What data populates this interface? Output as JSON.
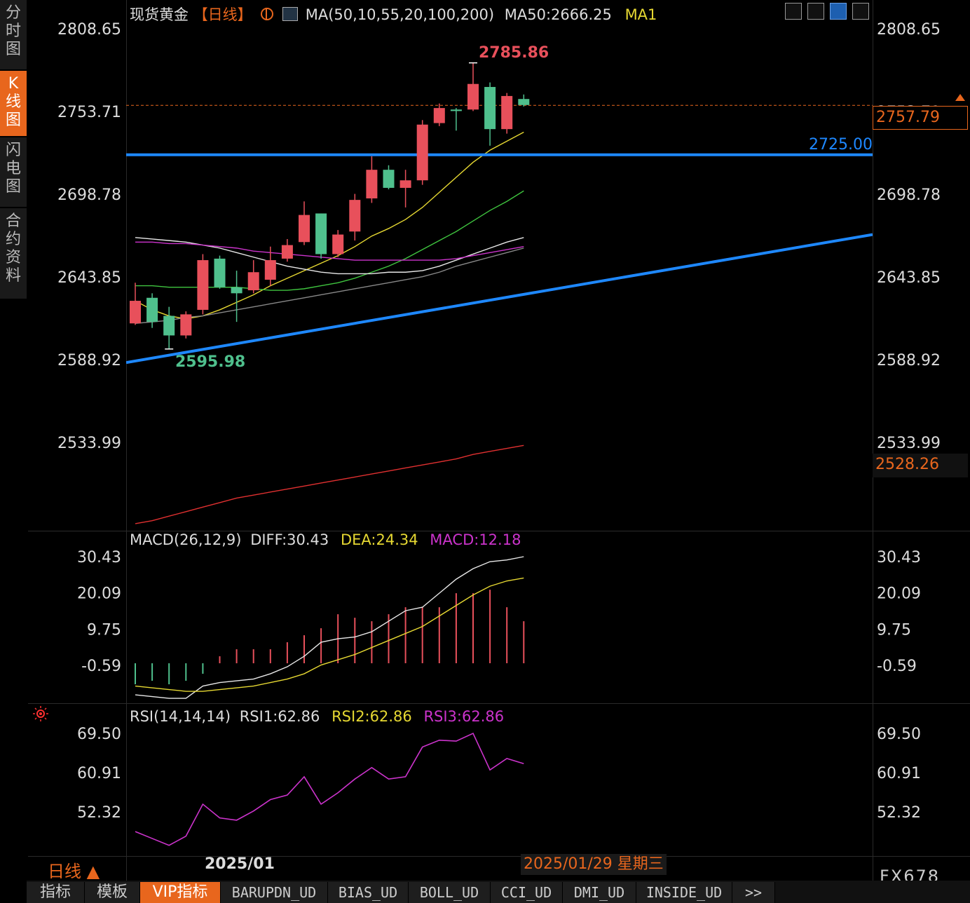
{
  "header": {
    "symbol": "现货黄金",
    "period": "【日线】",
    "ma_indicator": "MA(50,10,55,20,100,200)",
    "ma50_reading": "MA50:2666.25",
    "ma1_label": "MA1"
  },
  "sidebar": {
    "tabs": [
      {
        "label": "分时图",
        "active": false
      },
      {
        "label": "K线图",
        "active": true
      },
      {
        "label": "闪电图",
        "active": false
      },
      {
        "label": "合约资料",
        "active": false
      }
    ]
  },
  "toolbar_icons": [
    "grid-icon",
    "bar-chart-icon",
    "chart-select-icon",
    "export-icon"
  ],
  "price_axis_ticks": [
    "2808.65",
    "2753.71",
    "2698.78",
    "2643.85",
    "2588.92",
    "2533.99"
  ],
  "current_price_tag": "2757.79",
  "lower_price_tag": "2528.26",
  "annotations": {
    "support_line_label": "2725.00",
    "high_label": "2785.86",
    "low_label": "2595.98"
  },
  "macd_panel": {
    "title": "MACD(26,12,9)",
    "diff": "DIFF:30.43",
    "dea": "DEA:24.34",
    "macd": "MACD:12.18",
    "ticks": [
      "30.43",
      "20.09",
      "9.75",
      "-0.59"
    ]
  },
  "rsi_panel": {
    "title": "RSI(14,14,14)",
    "rsi1": "RSI1:62.86",
    "rsi2": "RSI2:62.86",
    "rsi3": "RSI3:62.86",
    "ticks": [
      "69.50",
      "60.91",
      "52.32"
    ]
  },
  "footer": {
    "period_label": "日线 ▲",
    "x_axis_label": "2025/01",
    "cursor_date": "2025/01/29 星期三",
    "watermark": "FX678"
  },
  "bottom_tabs": [
    {
      "label": "指标",
      "active": false
    },
    {
      "label": "模板",
      "active": false
    },
    {
      "label": "VIP指标",
      "active": true
    },
    {
      "label": "BARUPDN_UD",
      "active": false
    },
    {
      "label": "BIAS_UD",
      "active": false
    },
    {
      "label": "BOLL_UD",
      "active": false
    },
    {
      "label": "CCI_UD",
      "active": false
    },
    {
      "label": "DMI_UD",
      "active": false
    },
    {
      "label": "INSIDE_UD",
      "active": false
    },
    {
      "label": ">>",
      "active": false
    }
  ],
  "colors": {
    "up": "#e8505b",
    "down": "#4fc08d",
    "blue_line": "#1e88ff",
    "ma_yellow": "#e6d832",
    "ma_green": "#3fc43f",
    "ma_white": "#e8e8e8",
    "ma_magenta": "#cc33cc",
    "ma_gray": "#888888",
    "ma_red": "#e03030",
    "accent": "#e8661d"
  },
  "chart_data": [
    {
      "type": "candlestick",
      "title": "现货黄金【日线】",
      "y_axis_ticks": [
        2808.65,
        2753.71,
        2698.78,
        2643.85,
        2588.92,
        2533.99
      ],
      "ylim": [
        2478,
        2815
      ],
      "candles": [
        {
          "o": 2613,
          "h": 2640,
          "l": 2612,
          "c": 2628,
          "dir": "up"
        },
        {
          "o": 2630,
          "h": 2633,
          "l": 2610,
          "c": 2614,
          "dir": "down"
        },
        {
          "o": 2618,
          "h": 2624,
          "l": 2596,
          "c": 2605,
          "dir": "down"
        },
        {
          "o": 2605,
          "h": 2621,
          "l": 2603,
          "c": 2619,
          "dir": "up"
        },
        {
          "o": 2622,
          "h": 2659,
          "l": 2619,
          "c": 2655,
          "dir": "up"
        },
        {
          "o": 2656,
          "h": 2658,
          "l": 2636,
          "c": 2637,
          "dir": "down"
        },
        {
          "o": 2637,
          "h": 2648,
          "l": 2614,
          "c": 2633,
          "dir": "down"
        },
        {
          "o": 2635,
          "h": 2655,
          "l": 2633,
          "c": 2647,
          "dir": "up"
        },
        {
          "o": 2642,
          "h": 2664,
          "l": 2638,
          "c": 2655,
          "dir": "up"
        },
        {
          "o": 2656,
          "h": 2669,
          "l": 2654,
          "c": 2665,
          "dir": "up"
        },
        {
          "o": 2667,
          "h": 2694,
          "l": 2665,
          "c": 2685,
          "dir": "up"
        },
        {
          "o": 2686,
          "h": 2686,
          "l": 2656,
          "c": 2659,
          "dir": "down"
        },
        {
          "o": 2659,
          "h": 2675,
          "l": 2657,
          "c": 2672,
          "dir": "up"
        },
        {
          "o": 2674,
          "h": 2699,
          "l": 2668,
          "c": 2695,
          "dir": "up"
        },
        {
          "o": 2696,
          "h": 2724,
          "l": 2693,
          "c": 2715,
          "dir": "up"
        },
        {
          "o": 2715,
          "h": 2718,
          "l": 2702,
          "c": 2703,
          "dir": "down"
        },
        {
          "o": 2703,
          "h": 2715,
          "l": 2690,
          "c": 2708,
          "dir": "up"
        },
        {
          "o": 2708,
          "h": 2748,
          "l": 2705,
          "c": 2745,
          "dir": "up"
        },
        {
          "o": 2746,
          "h": 2759,
          "l": 2744,
          "c": 2756,
          "dir": "up"
        },
        {
          "o": 2754,
          "h": 2756,
          "l": 2741,
          "c": 2755,
          "dir": "down"
        },
        {
          "o": 2755,
          "h": 2786,
          "l": 2754,
          "c": 2772,
          "dir": "up"
        },
        {
          "o": 2770,
          "h": 2773,
          "l": 2731,
          "c": 2742,
          "dir": "down"
        },
        {
          "o": 2742,
          "h": 2766,
          "l": 2739,
          "c": 2764,
          "dir": "up"
        },
        {
          "o": 2758,
          "h": 2765,
          "l": 2757,
          "c": 2762,
          "dir": "down"
        }
      ],
      "ma_lines": [
        {
          "color": "yellow",
          "values": [
            2628,
            2622,
            2618,
            2616,
            2618,
            2622,
            2627,
            2632,
            2638,
            2643,
            2648,
            2653,
            2658,
            2664,
            2671,
            2676,
            2682,
            2690,
            2700,
            2710,
            2720,
            2728,
            2734,
            2740
          ]
        },
        {
          "color": "green",
          "values": [
            2638,
            2638,
            2637,
            2637,
            2637,
            2637,
            2637,
            2636,
            2635,
            2635,
            2636,
            2638,
            2640,
            2643,
            2647,
            2651,
            2656,
            2662,
            2668,
            2674,
            2681,
            2688,
            2694,
            2701
          ]
        },
        {
          "color": "white",
          "values": [
            2670,
            2669,
            2668,
            2667,
            2665,
            2663,
            2660,
            2657,
            2654,
            2651,
            2649,
            2647,
            2646,
            2646,
            2646,
            2647,
            2647,
            2648,
            2651,
            2655,
            2659,
            2663,
            2667,
            2670
          ]
        },
        {
          "color": "magenta",
          "values": [
            2667,
            2667,
            2666,
            2666,
            2665,
            2664,
            2663,
            2661,
            2660,
            2659,
            2658,
            2657,
            2656,
            2655,
            2655,
            2655,
            2655,
            2655,
            2655,
            2656,
            2658,
            2660,
            2662,
            2664
          ]
        },
        {
          "color": "gray",
          "values": [
            2613,
            2614,
            2615,
            2617,
            2618,
            2620,
            2622,
            2624,
            2626,
            2628,
            2630,
            2632,
            2634,
            2636,
            2638,
            2640,
            2642,
            2644,
            2647,
            2651,
            2654,
            2657,
            2660,
            2663
          ]
        },
        {
          "color": "red",
          "values": [
            2480,
            2482,
            2485,
            2488,
            2491,
            2494,
            2497,
            2499,
            2501,
            2503,
            2505,
            2507,
            2509,
            2511,
            2513,
            2515,
            2517,
            2519,
            2521,
            2523,
            2526,
            2528,
            2530,
            2532
          ]
        }
      ],
      "horizontal_line": 2725.0,
      "trendline": {
        "start": 2587,
        "end": 2672
      },
      "current_price": 2757.79
    },
    {
      "type": "bar",
      "title": "MACD(26,12,9)",
      "y_axis_ticks": [
        30.43,
        20.09,
        9.75,
        -0.59
      ],
      "ylim": [
        -11,
        33
      ],
      "histogram": [
        -6,
        -5,
        -6,
        -5,
        -3,
        2,
        4,
        4,
        4,
        6,
        8,
        10,
        14,
        13,
        12,
        14,
        16,
        16,
        16,
        20,
        20,
        21,
        16,
        12
      ],
      "diff": [
        -9,
        -9.5,
        -10,
        -10,
        -6.5,
        -5.5,
        -5,
        -4.5,
        -3,
        -1,
        2,
        6,
        7,
        7.5,
        9,
        12,
        15,
        16,
        20,
        24,
        27,
        29,
        29.5,
        30.43
      ],
      "dea": [
        -6.5,
        -7,
        -7.5,
        -8,
        -8,
        -7.5,
        -7,
        -6.5,
        -5.5,
        -4.5,
        -3,
        -0.5,
        1,
        2.5,
        4.5,
        6.5,
        8.5,
        10.5,
        13.5,
        16.5,
        19.5,
        22,
        23.5,
        24.34
      ]
    },
    {
      "type": "line",
      "title": "RSI(14,14,14)",
      "y_axis_ticks": [
        69.5,
        60.91,
        52.32
      ],
      "ylim": [
        44,
        73
      ],
      "rsi": [
        48,
        46.5,
        45,
        47,
        54,
        51,
        50.5,
        52.5,
        55,
        56,
        60,
        54,
        56.5,
        59.5,
        62,
        59.5,
        60,
        66.5,
        68,
        67.8,
        69.5,
        61.5,
        64,
        62.86
      ]
    }
  ]
}
